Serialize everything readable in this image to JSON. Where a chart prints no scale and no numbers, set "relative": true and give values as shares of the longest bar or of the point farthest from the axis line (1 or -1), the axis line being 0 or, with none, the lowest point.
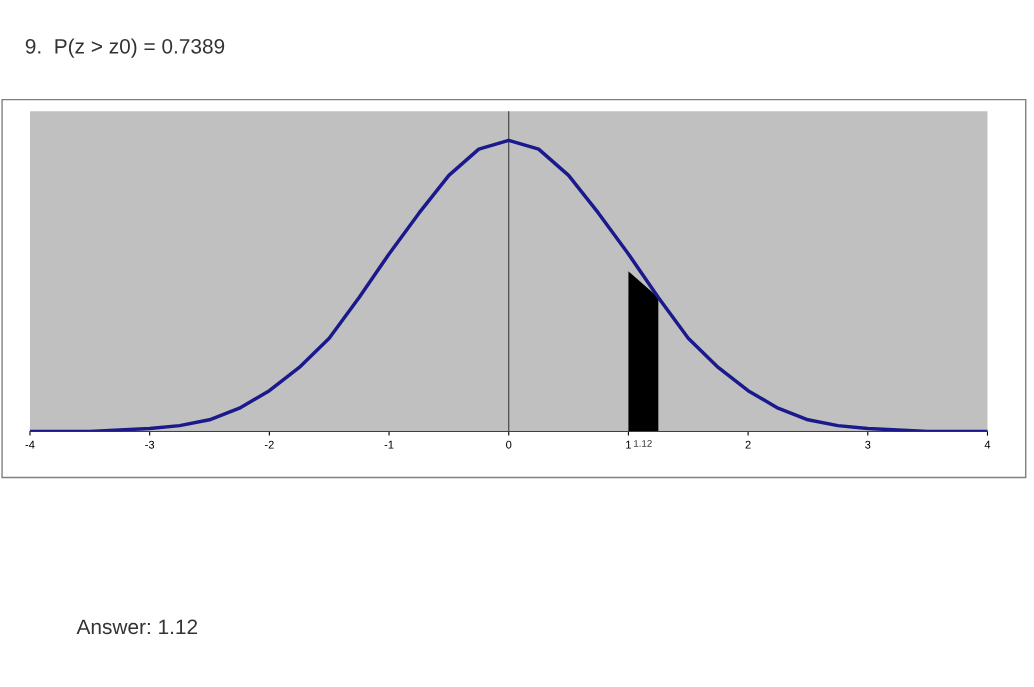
{
  "chart_data": {
    "type": "line",
    "title": "9.  P(z > z0) = 0.7389",
    "relative": true,
    "x": [
      -4,
      -3.5,
      -3,
      -2.75,
      -2.5,
      -2.25,
      -2,
      -1.75,
      -1.5,
      -1.25,
      -1,
      -0.75,
      -0.5,
      -0.25,
      0,
      0.25,
      0.5,
      0.75,
      1,
      1.25,
      1.5,
      1.75,
      2,
      2.25,
      2.5,
      2.75,
      3,
      3.5,
      4
    ],
    "series": [
      {
        "color": "#1a1a8c",
        "values": [
          0.0,
          0.0,
          0.01,
          0.02,
          0.04,
          0.08,
          0.14,
          0.22,
          0.32,
          0.46,
          0.61,
          0.75,
          0.88,
          0.97,
          1.0,
          0.97,
          0.88,
          0.75,
          0.61,
          0.46,
          0.32,
          0.22,
          0.14,
          0.08,
          0.04,
          0.02,
          0.01,
          0.0,
          0.0
        ]
      },
      {
        "type": "area",
        "color": "#000000",
        "x": [
          1,
          1.25
        ],
        "values": [
          0.55,
          0.46
        ]
      }
    ],
    "xlim": [
      -4,
      4
    ],
    "xticks": [
      -4,
      -3,
      -2,
      -1,
      0,
      1,
      2,
      3,
      4
    ],
    "ref_lines": [
      {
        "axis": "x",
        "value": 0,
        "color": "#404040"
      }
    ],
    "grid": false,
    "legend": false,
    "marker": "none",
    "annotations": [
      {
        "text": "1.12",
        "x": 1.12,
        "y": 0
      },
      "Answer: 1.12"
    ]
  }
}
